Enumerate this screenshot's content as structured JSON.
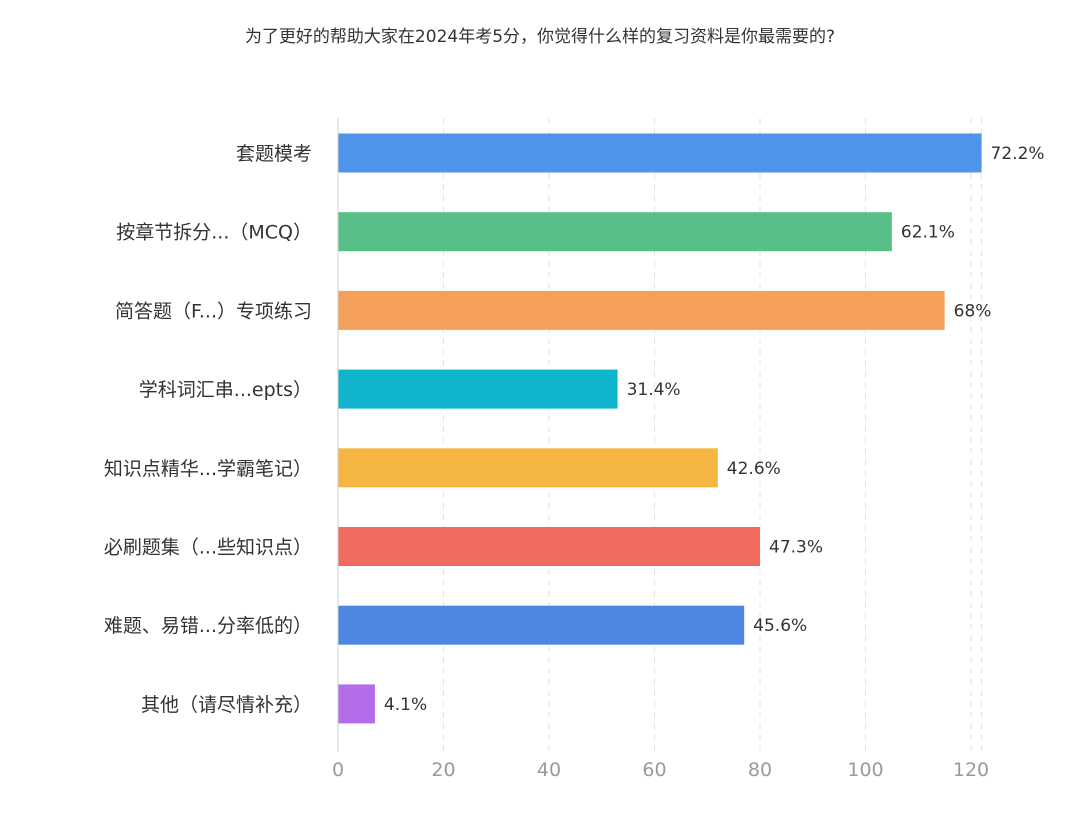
{
  "title": "为了更好的帮助大家在2024年考5分，你觉得什么样的复习资料是你最需要的?",
  "chart_data": {
    "type": "bar",
    "orientation": "horizontal",
    "title": "为了更好的帮助大家在2024年考5分，你觉得什么样的复习资料是你最需要的?",
    "categories": [
      "套题模考",
      "按章节拆分...（MCQ）",
      "简答题（F...）专项练习",
      "学科词汇串...epts）",
      "知识点精华...学霸笔记）",
      "必刷题集（...些知识点）",
      "难题、易错...分率低的）",
      "其他（请尽情补充）"
    ],
    "values": [
      122,
      105,
      115,
      53,
      72,
      80,
      77,
      7
    ],
    "data_labels": [
      "72.2%",
      "62.1%",
      "68%",
      "31.4%",
      "42.6%",
      "47.3%",
      "45.6%",
      "4.1%"
    ],
    "colors": [
      "#4e94ea",
      "#57bf87",
      "#f5a05a",
      "#0fb3cc",
      "#f5b642",
      "#ef6b5f",
      "#4e86e4",
      "#b36de8"
    ],
    "xlim": [
      0,
      122
    ],
    "xticks": [
      0,
      20,
      40,
      60,
      80,
      100,
      120
    ],
    "grid": true
  }
}
